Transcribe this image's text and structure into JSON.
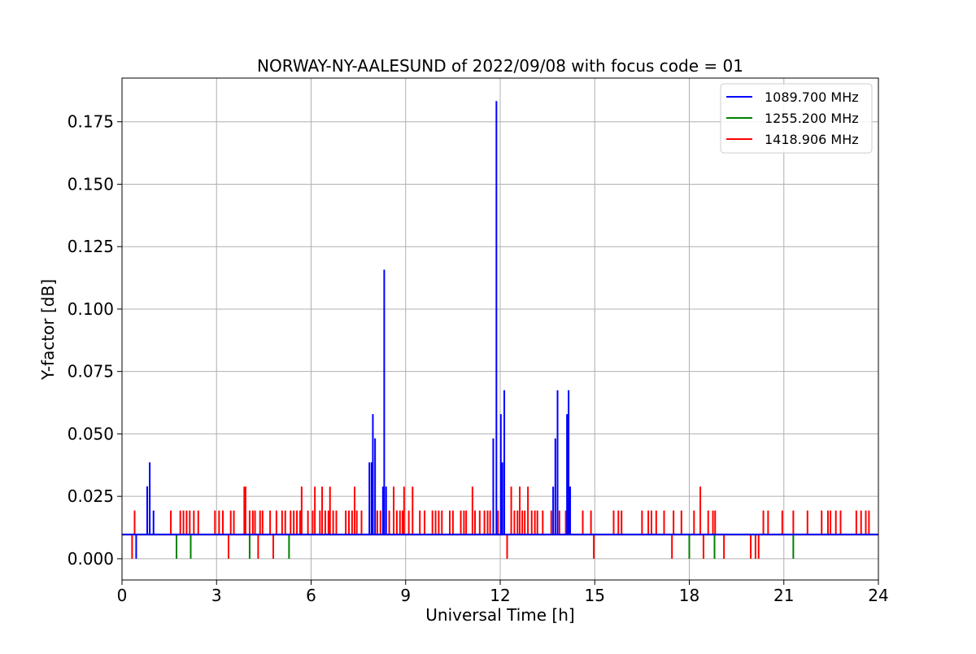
{
  "chart_data": {
    "type": "line",
    "title": "NORWAY-NY-AALESUND of 2022/09/08 with focus code = 01",
    "xlabel": "Universal Time [h]",
    "ylabel": "Y-factor [dB]",
    "xlim": [
      0,
      24
    ],
    "ylim": [
      -0.0085,
      0.1925
    ],
    "xticks": [
      0,
      3,
      6,
      9,
      12,
      15,
      18,
      21,
      24
    ],
    "xtick_labels": [
      "0",
      "3",
      "6",
      "9",
      "12",
      "15",
      "18",
      "21",
      "24"
    ],
    "yticks": [
      0.0,
      0.025,
      0.05,
      0.075,
      0.1,
      0.125,
      0.15,
      0.175
    ],
    "ytick_labels": [
      "0.000",
      "0.025",
      "0.050",
      "0.075",
      "0.100",
      "0.125",
      "0.150",
      "0.175"
    ],
    "grid": true,
    "legend_position": "top-right",
    "baseline": 0.0097,
    "series": [
      {
        "name": "1089.700 MHz",
        "color": "#0000ff",
        "spikes": [
          [
            0.45,
            0.0
          ],
          [
            0.8,
            0.029
          ],
          [
            0.88,
            0.0386
          ],
          [
            1.0,
            0.0193
          ],
          [
            7.85,
            0.0386
          ],
          [
            7.92,
            0.0386
          ],
          [
            7.96,
            0.0579
          ],
          [
            8.03,
            0.0482
          ],
          [
            8.28,
            0.0289
          ],
          [
            8.32,
            0.1158
          ],
          [
            8.38,
            0.0289
          ],
          [
            11.78,
            0.0482
          ],
          [
            11.88,
            0.1833
          ],
          [
            12.02,
            0.0579
          ],
          [
            12.07,
            0.0386
          ],
          [
            12.13,
            0.0675
          ],
          [
            13.68,
            0.0289
          ],
          [
            13.75,
            0.0482
          ],
          [
            13.82,
            0.0675
          ],
          [
            14.12,
            0.0579
          ],
          [
            14.17,
            0.0675
          ],
          [
            14.22,
            0.0289
          ]
        ]
      },
      {
        "name": "1255.200 MHz",
        "color": "#008000",
        "spikes": [
          [
            1.73,
            0.0
          ],
          [
            2.18,
            0.0
          ],
          [
            4.05,
            0.0
          ],
          [
            5.3,
            0.0
          ],
          [
            18.0,
            0.0
          ],
          [
            18.8,
            0.0
          ],
          [
            21.3,
            0.0
          ]
        ]
      },
      {
        "name": "1418.906 MHz",
        "color": "#ff0000",
        "spikes": [
          [
            0.32,
            0.0
          ],
          [
            0.4,
            0.0193
          ],
          [
            1.55,
            0.0193
          ],
          [
            1.85,
            0.0193
          ],
          [
            1.95,
            0.0193
          ],
          [
            2.05,
            0.0193
          ],
          [
            2.15,
            0.0193
          ],
          [
            2.28,
            0.0193
          ],
          [
            2.42,
            0.0193
          ],
          [
            2.95,
            0.0193
          ],
          [
            3.08,
            0.0193
          ],
          [
            3.2,
            0.0193
          ],
          [
            3.38,
            0.0
          ],
          [
            3.45,
            0.0193
          ],
          [
            3.55,
            0.0193
          ],
          [
            3.88,
            0.0289
          ],
          [
            3.92,
            0.0289
          ],
          [
            4.05,
            0.0193
          ],
          [
            4.15,
            0.0193
          ],
          [
            4.22,
            0.0193
          ],
          [
            4.32,
            0.0
          ],
          [
            4.38,
            0.0193
          ],
          [
            4.46,
            0.0193
          ],
          [
            4.7,
            0.0193
          ],
          [
            4.8,
            0.0
          ],
          [
            4.9,
            0.0193
          ],
          [
            5.08,
            0.0193
          ],
          [
            5.18,
            0.0193
          ],
          [
            5.35,
            0.0193
          ],
          [
            5.45,
            0.0193
          ],
          [
            5.55,
            0.0193
          ],
          [
            5.65,
            0.0193
          ],
          [
            5.7,
            0.0289
          ],
          [
            5.9,
            0.0193
          ],
          [
            6.05,
            0.0193
          ],
          [
            6.12,
            0.0289
          ],
          [
            6.28,
            0.0193
          ],
          [
            6.35,
            0.0289
          ],
          [
            6.45,
            0.0193
          ],
          [
            6.55,
            0.0193
          ],
          [
            6.6,
            0.0289
          ],
          [
            6.7,
            0.0193
          ],
          [
            6.8,
            0.0193
          ],
          [
            7.1,
            0.0193
          ],
          [
            7.2,
            0.0193
          ],
          [
            7.3,
            0.0193
          ],
          [
            7.38,
            0.0289
          ],
          [
            7.45,
            0.0193
          ],
          [
            7.6,
            0.0193
          ],
          [
            8.1,
            0.0193
          ],
          [
            8.2,
            0.0193
          ],
          [
            8.48,
            0.0193
          ],
          [
            8.62,
            0.0289
          ],
          [
            8.72,
            0.0193
          ],
          [
            8.82,
            0.0193
          ],
          [
            8.9,
            0.0193
          ],
          [
            8.95,
            0.0289
          ],
          [
            9.1,
            0.0193
          ],
          [
            9.22,
            0.0289
          ],
          [
            9.45,
            0.0193
          ],
          [
            9.6,
            0.0193
          ],
          [
            9.85,
            0.0193
          ],
          [
            9.95,
            0.0193
          ],
          [
            10.05,
            0.0193
          ],
          [
            10.15,
            0.0193
          ],
          [
            10.4,
            0.0193
          ],
          [
            10.5,
            0.0193
          ],
          [
            10.75,
            0.0193
          ],
          [
            10.85,
            0.0193
          ],
          [
            10.92,
            0.0193
          ],
          [
            11.12,
            0.0289
          ],
          [
            11.2,
            0.0193
          ],
          [
            11.35,
            0.0193
          ],
          [
            11.5,
            0.0193
          ],
          [
            11.6,
            0.0193
          ],
          [
            11.68,
            0.0193
          ],
          [
            11.93,
            0.0193
          ],
          [
            12.05,
            0.0193
          ],
          [
            12.22,
            0.0
          ],
          [
            12.35,
            0.0289
          ],
          [
            12.45,
            0.0193
          ],
          [
            12.55,
            0.0193
          ],
          [
            12.62,
            0.0289
          ],
          [
            12.7,
            0.0193
          ],
          [
            12.78,
            0.0193
          ],
          [
            12.88,
            0.0289
          ],
          [
            13.0,
            0.0193
          ],
          [
            13.1,
            0.0193
          ],
          [
            13.18,
            0.0193
          ],
          [
            13.35,
            0.0193
          ],
          [
            13.62,
            0.0193
          ],
          [
            13.88,
            0.0193
          ],
          [
            14.08,
            0.0193
          ],
          [
            14.62,
            0.0193
          ],
          [
            14.88,
            0.0193
          ],
          [
            14.97,
            0.0
          ],
          [
            15.6,
            0.0193
          ],
          [
            15.75,
            0.0193
          ],
          [
            15.85,
            0.0193
          ],
          [
            16.5,
            0.0193
          ],
          [
            16.7,
            0.0193
          ],
          [
            16.8,
            0.0193
          ],
          [
            16.95,
            0.0193
          ],
          [
            17.2,
            0.0193
          ],
          [
            17.45,
            0.0
          ],
          [
            17.5,
            0.0193
          ],
          [
            17.75,
            0.0193
          ],
          [
            18.15,
            0.0193
          ],
          [
            18.35,
            0.0289
          ],
          [
            18.45,
            0.0
          ],
          [
            18.6,
            0.0193
          ],
          [
            18.75,
            0.0193
          ],
          [
            18.82,
            0.0193
          ],
          [
            19.1,
            0.0
          ],
          [
            19.95,
            0.0
          ],
          [
            20.1,
            0.0
          ],
          [
            20.2,
            0.0
          ],
          [
            20.35,
            0.0193
          ],
          [
            20.5,
            0.0193
          ],
          [
            20.95,
            0.0193
          ],
          [
            21.3,
            0.0193
          ],
          [
            21.75,
            0.0193
          ],
          [
            22.2,
            0.0193
          ],
          [
            22.4,
            0.0193
          ],
          [
            22.48,
            0.0193
          ],
          [
            22.65,
            0.0193
          ],
          [
            22.8,
            0.0193
          ],
          [
            23.3,
            0.0193
          ],
          [
            23.45,
            0.0193
          ],
          [
            23.6,
            0.0193
          ],
          [
            23.7,
            0.0193
          ]
        ]
      }
    ]
  }
}
